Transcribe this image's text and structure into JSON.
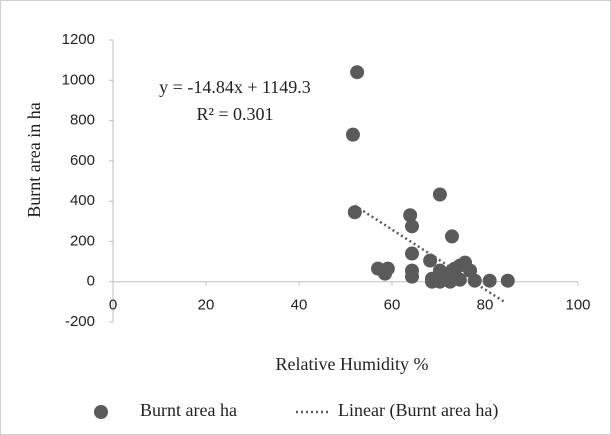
{
  "chart_data": {
    "type": "scatter",
    "x_label": "Relative Humidity  %",
    "y_label": "Burnt area in ha",
    "annotations": [
      "y = -14.84x + 1149.3",
      "R² = 0.301"
    ],
    "xlim": [
      0,
      100
    ],
    "xticks": [
      0,
      20,
      40,
      60,
      80,
      100
    ],
    "ylim": [
      -200,
      1200
    ],
    "yticks": [
      -200,
      0,
      200,
      400,
      600,
      800,
      1000,
      1200
    ],
    "grid": false,
    "legend": "bottom",
    "series": [
      {
        "name": "Burnt area ha",
        "color": "#5a5a5a",
        "mode": "markers",
        "x": [
          52.5,
          51.6,
          52,
          70.3,
          63.9,
          64.3,
          72.9,
          64.3,
          57,
          59.1,
          58.5,
          64.3,
          64.3,
          68.2,
          68.6,
          70.3,
          71.4,
          72.5,
          73.5,
          74.6,
          75.7,
          76.8,
          74.6,
          77.8,
          81,
          84.9,
          72.5,
          70.3,
          68.6
        ],
        "values": [
          1040,
          730,
          345,
          433,
          330,
          275,
          225,
          140,
          65,
          65,
          40,
          55,
          25,
          105,
          15,
          55,
          30,
          45,
          65,
          80,
          95,
          55,
          10,
          5,
          5,
          5,
          0,
          0,
          0
        ]
      },
      {
        "name": "Linear (Burnt area ha)",
        "color": "#5a5a5a",
        "mode": "dotted-line",
        "x": [
          52,
          84.5
        ],
        "values": [
          378,
          -105
        ]
      }
    ]
  }
}
